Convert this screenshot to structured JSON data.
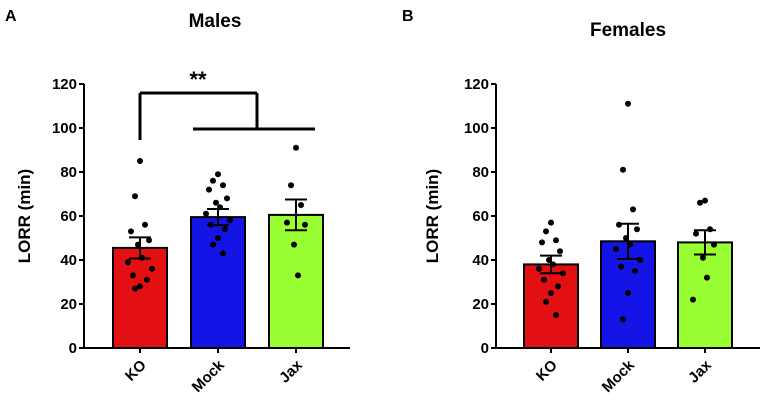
{
  "chart_data": [
    {
      "panel_label": "A",
      "type": "bar",
      "title": "Males",
      "ylabel": "LORR (min)",
      "xlabel": "",
      "ylim": [
        0,
        120
      ],
      "yticks": [
        "0",
        "20",
        "40",
        "60",
        "80",
        "100",
        "120"
      ],
      "categories": [
        "KO",
        "Mock",
        "Jax"
      ],
      "values": [
        45.5,
        59.5,
        60.5
      ],
      "sem": [
        4.8,
        3.7,
        7.0
      ],
      "colors": [
        "#e20f13",
        "#1414e6",
        "#99ff33"
      ],
      "points": [
        [
          85,
          69,
          56,
          53,
          49,
          47,
          41,
          39,
          36,
          33,
          31,
          28,
          27
        ],
        [
          79,
          76,
          74,
          72,
          68,
          66,
          64,
          61,
          58,
          56,
          54,
          50,
          47,
          43
        ],
        [
          91,
          74,
          65,
          57,
          56,
          47,
          33
        ]
      ],
      "significance": {
        "label": "**",
        "from": "KO",
        "to": [
          "Mock",
          "Jax"
        ]
      }
    },
    {
      "panel_label": "B",
      "type": "bar",
      "title": "Females",
      "ylabel": "LORR (min)",
      "xlabel": "",
      "ylim": [
        0,
        120
      ],
      "yticks": [
        "0",
        "20",
        "40",
        "60",
        "80",
        "100",
        "120"
      ],
      "categories": [
        "KO",
        "Mock",
        "Jax"
      ],
      "values": [
        38,
        48.5,
        48
      ],
      "sem": [
        4,
        8,
        5.5
      ],
      "colors": [
        "#e20f13",
        "#1414e6",
        "#99ff33"
      ],
      "points": [
        [
          57,
          53,
          49,
          48,
          44,
          40,
          38,
          36,
          34,
          31,
          28,
          25,
          21,
          15
        ],
        [
          111,
          81,
          63,
          56,
          54,
          50,
          47,
          45,
          40,
          37,
          35,
          25,
          13
        ],
        [
          67,
          66,
          54,
          52,
          47,
          41,
          32,
          22
        ]
      ]
    }
  ]
}
